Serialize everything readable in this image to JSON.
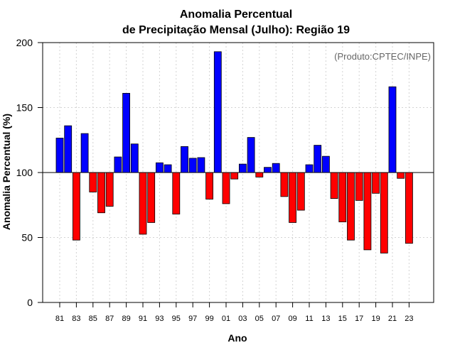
{
  "chart_data": {
    "type": "bar",
    "title_line1": "Anomalia Percentual",
    "title_line2": "de Precipitação Mensal (Julho): Região 19",
    "xlabel": "Ano",
    "ylabel": "Anomalia Percentual (%)",
    "annotation": "(Produto:CPTEC/INPE)",
    "baseline": 100,
    "ylim": [
      0,
      200
    ],
    "yticks": [
      "0",
      "50",
      "100",
      "150",
      "200"
    ],
    "categories": [
      "81",
      "82",
      "83",
      "84",
      "85",
      "86",
      "87",
      "88",
      "89",
      "90",
      "91",
      "92",
      "93",
      "94",
      "95",
      "96",
      "97",
      "98",
      "99",
      "00",
      "01",
      "02",
      "03",
      "04",
      "05",
      "06",
      "07",
      "08",
      "09",
      "10",
      "11",
      "12",
      "13",
      "14",
      "15",
      "16",
      "17",
      "18",
      "19",
      "20",
      "21",
      "22",
      "23"
    ],
    "xtick_labels": [
      "81",
      "83",
      "85",
      "87",
      "89",
      "91",
      "93",
      "95",
      "97",
      "99",
      "01",
      "03",
      "05",
      "07",
      "09",
      "11",
      "13",
      "15",
      "17",
      "19",
      "21",
      "23"
    ],
    "values": [
      126.5,
      136,
      48,
      130,
      85,
      69,
      74,
      112,
      161,
      122,
      52.5,
      61.5,
      107.5,
      106,
      68,
      120,
      111,
      111.5,
      79.5,
      193,
      76,
      95,
      106.5,
      127,
      96.5,
      104,
      107,
      81.5,
      61.5,
      71,
      106,
      121,
      112.5,
      80,
      62,
      48,
      78.5,
      40.5,
      84,
      38,
      166,
      95.5,
      45.5
    ],
    "colors": {
      "positive": "#0000ff",
      "negative": "#ff0000",
      "grid": "#d3d3d3",
      "frame": "#000000"
    },
    "grid": true
  }
}
